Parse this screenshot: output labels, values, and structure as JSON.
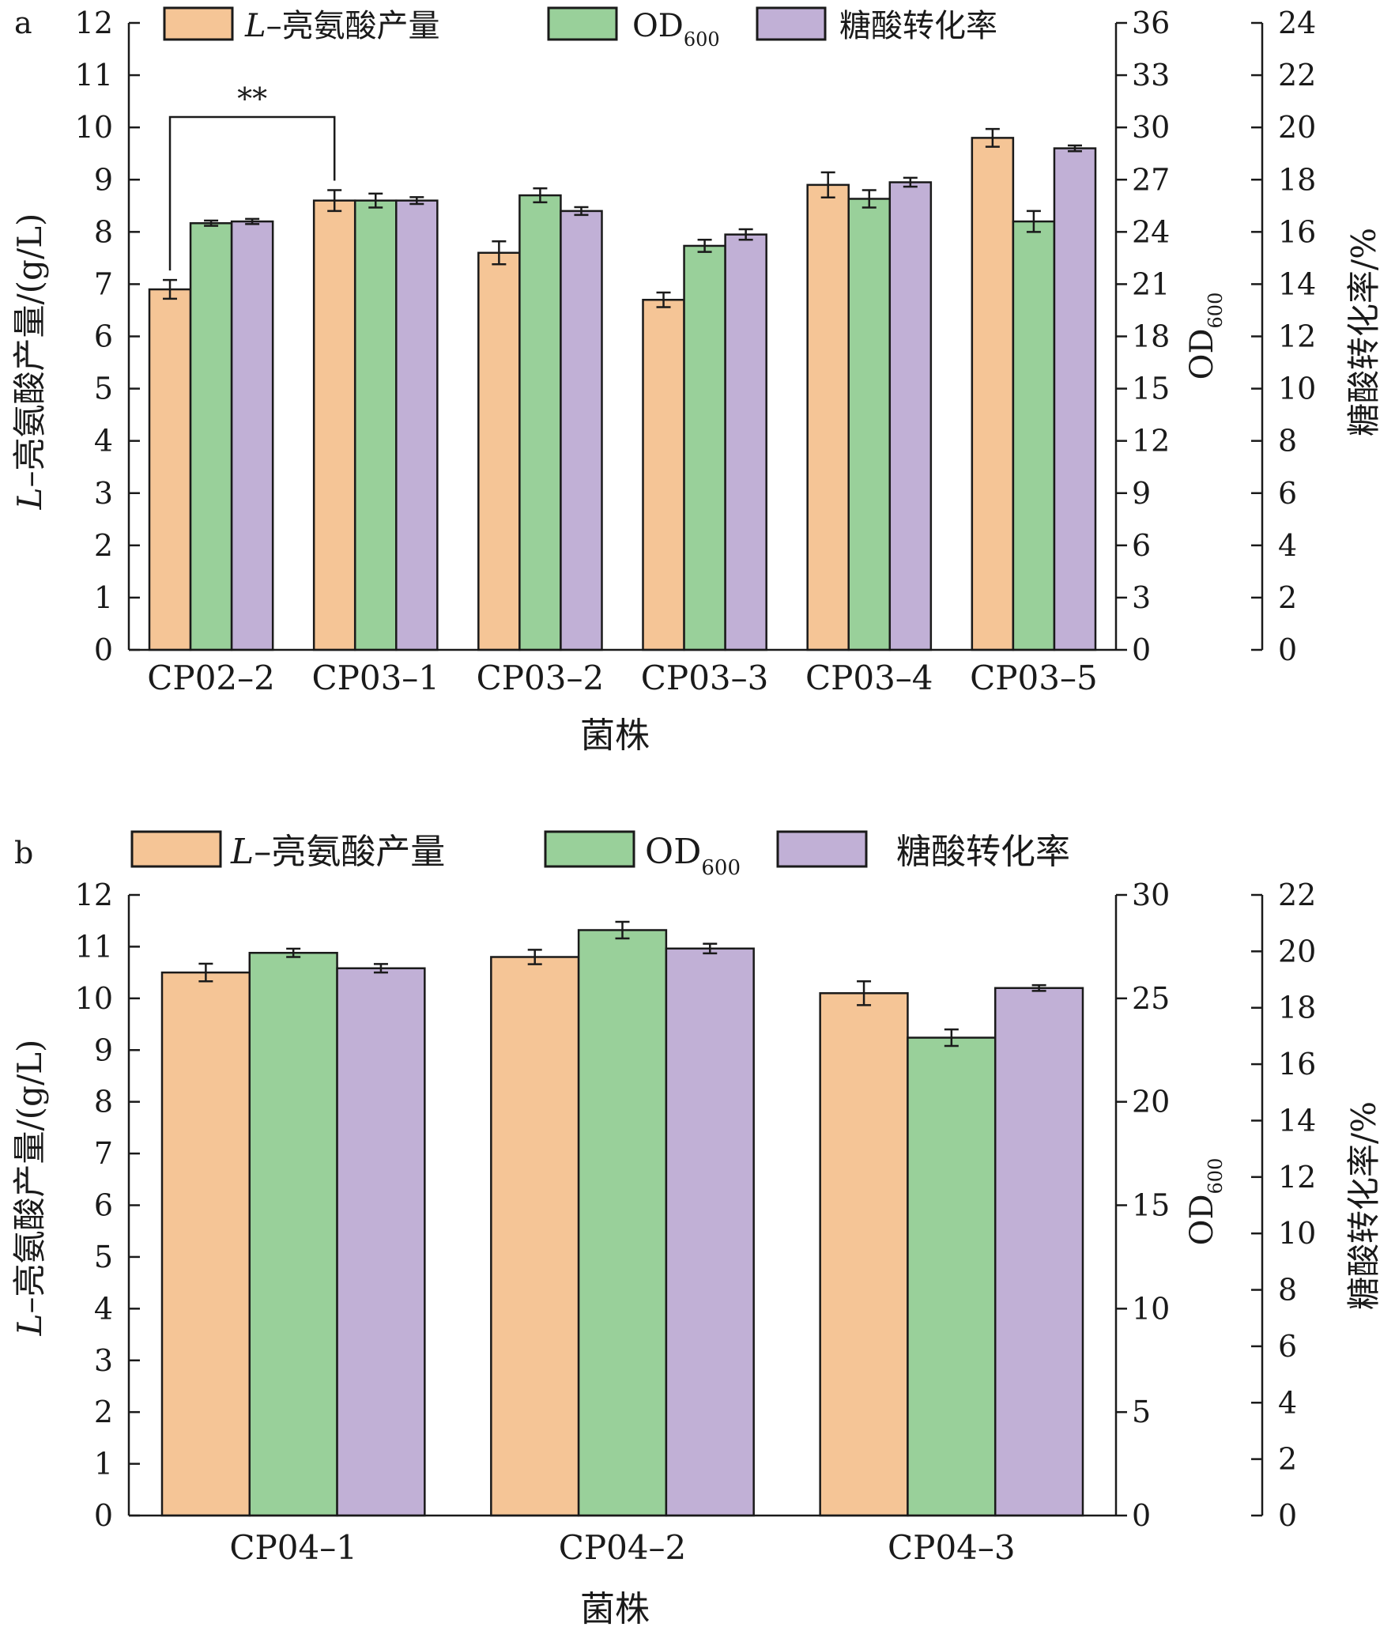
{
  "colors": {
    "leu": "#f5c596",
    "od": "#99d09a",
    "sugar": "#c1b0d6",
    "axis": "#1a1a1a"
  },
  "legend_labels": {
    "leu_prefix": "L",
    "leu_suffix": "–亮氨酸产量",
    "od_main": "OD",
    "od_sub": "600",
    "sugar": "糖酸转化率"
  },
  "chart_data": [
    {
      "panel_label": "a",
      "type": "bar",
      "categories": [
        "CP02–2",
        "CP03–1",
        "CP03–2",
        "CP03–3",
        "CP03–4",
        "CP03–5"
      ],
      "xlabel": "菌株",
      "ylabel_left": {
        "prefix": "L",
        "text": "–亮氨酸产量/(g/L)"
      },
      "ylabel_right1": {
        "main": "OD",
        "sub": "600"
      },
      "ylabel_right2": "糖酸转化率/%",
      "ylim_left": [
        0,
        12
      ],
      "ylim_right1": [
        0,
        36
      ],
      "ylim_right2": [
        0,
        24
      ],
      "ticks_left": [
        0,
        1,
        2,
        3,
        4,
        5,
        6,
        7,
        8,
        9,
        10,
        11,
        12
      ],
      "ticks_right1": [
        0,
        3,
        6,
        9,
        12,
        15,
        18,
        21,
        24,
        27,
        30,
        33,
        36
      ],
      "ticks_right2": [
        0,
        2,
        4,
        6,
        8,
        10,
        12,
        14,
        16,
        18,
        20,
        22,
        24
      ],
      "series": [
        {
          "name": "L–亮氨酸产量",
          "axis": "left",
          "values": [
            6.9,
            8.6,
            7.6,
            6.7,
            8.9,
            9.8
          ],
          "errors": [
            0.18,
            0.2,
            0.22,
            0.14,
            0.24,
            0.17
          ]
        },
        {
          "name": "OD600",
          "axis": "right1",
          "values": [
            24.5,
            25.8,
            26.1,
            23.2,
            25.9,
            24.6
          ],
          "errors": [
            0.15,
            0.4,
            0.4,
            0.35,
            0.5,
            0.6
          ]
        },
        {
          "name": "糖酸转化率",
          "axis": "right2",
          "values": [
            16.4,
            17.2,
            16.8,
            15.9,
            17.9,
            19.2
          ],
          "errors": [
            0.1,
            0.13,
            0.15,
            0.2,
            0.17,
            0.11
          ]
        }
      ],
      "annotation": {
        "text": "**",
        "from_category": 0,
        "to_category": 1
      }
    },
    {
      "panel_label": "b",
      "type": "bar",
      "categories": [
        "CP04–1",
        "CP04–2",
        "CP04–3"
      ],
      "xlabel": "菌株",
      "ylabel_left": {
        "prefix": "L",
        "text": "–亮氨酸产量/(g/L)"
      },
      "ylabel_right1": {
        "main": "OD",
        "sub": "600"
      },
      "ylabel_right2": "糖酸转化率/%",
      "ylim_left": [
        0,
        12
      ],
      "ylim_right1": [
        0,
        30
      ],
      "ylim_right2": [
        0,
        22
      ],
      "ticks_left": [
        0,
        1,
        2,
        3,
        4,
        5,
        6,
        7,
        8,
        9,
        10,
        11,
        12
      ],
      "ticks_right1": [
        0,
        5,
        10,
        15,
        20,
        25,
        30
      ],
      "ticks_right2": [
        0,
        2,
        4,
        6,
        8,
        10,
        12,
        14,
        16,
        18,
        20,
        22
      ],
      "series": [
        {
          "name": "L–亮氨酸产量",
          "axis": "left",
          "values": [
            10.5,
            10.8,
            10.1
          ],
          "errors": [
            0.17,
            0.14,
            0.23
          ]
        },
        {
          "name": "OD600",
          "axis": "right1",
          "values": [
            27.2,
            28.3,
            23.1
          ],
          "errors": [
            0.2,
            0.4,
            0.4
          ]
        },
        {
          "name": "糖酸转化率",
          "axis": "right2",
          "values": [
            19.4,
            20.1,
            18.7
          ],
          "errors": [
            0.15,
            0.17,
            0.1
          ]
        }
      ]
    }
  ]
}
